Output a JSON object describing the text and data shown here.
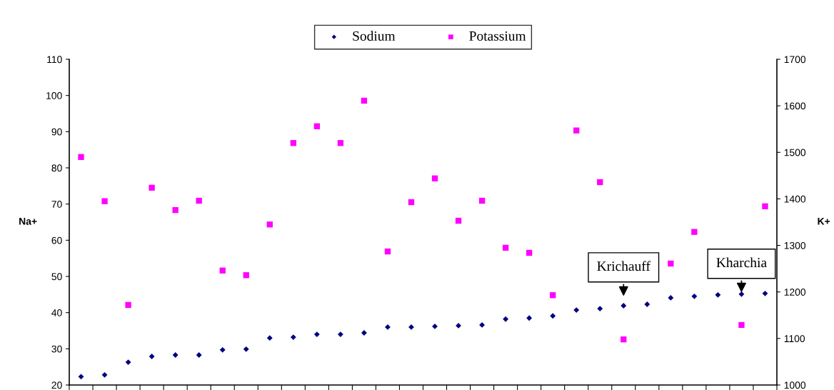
{
  "chart_data": {
    "type": "scatter",
    "categories": [
      null,
      null,
      null,
      null,
      null,
      null,
      null,
      null,
      null,
      null,
      null,
      null,
      null,
      null,
      null,
      null,
      null,
      null,
      null,
      null,
      null,
      null,
      null,
      null,
      null,
      null,
      null,
      null,
      null,
      null
    ],
    "ylabel": "Na+",
    "y2label": "K+",
    "ylim": [
      20,
      110
    ],
    "yticks": [
      20,
      30,
      40,
      50,
      60,
      70,
      80,
      90,
      100,
      110
    ],
    "y2lim": [
      1000,
      1700
    ],
    "y2ticks": [
      1000,
      1100,
      1200,
      1300,
      1400,
      1500,
      1600,
      1700
    ],
    "series": [
      {
        "name": "Sodium",
        "color": "#000080",
        "marker": "diamond",
        "values": [
          22.3,
          22.8,
          26.3,
          27.9,
          28.3,
          28.3,
          29.7,
          29.9,
          33.0,
          33.2,
          34.0,
          34.0,
          34.4,
          36.0,
          36.0,
          36.2,
          36.4,
          36.6,
          38.2,
          38.5,
          39.1,
          40.7,
          41.1,
          41.9,
          42.3,
          44.1,
          44.5,
          44.9,
          45.1,
          45.3
        ]
      },
      {
        "name": "Potassium",
        "color": "#ff00ff",
        "marker": "square",
        "axis": "y2",
        "values": [
          1490,
          1395,
          1172,
          1424,
          1376,
          1396,
          1246,
          1236,
          1345,
          1520,
          1556,
          1520,
          1611,
          1287,
          1393,
          1444,
          1353,
          1396,
          1295,
          1284,
          1193,
          1547,
          1436,
          1098,
          null,
          1261,
          1329,
          null,
          1129,
          1384
        ]
      }
    ],
    "annotations": [
      {
        "text": "Krichauff"
      },
      {
        "text": "Kharchia"
      }
    ],
    "legend": "top",
    "grid": false,
    "tick_labels": "y"
  }
}
